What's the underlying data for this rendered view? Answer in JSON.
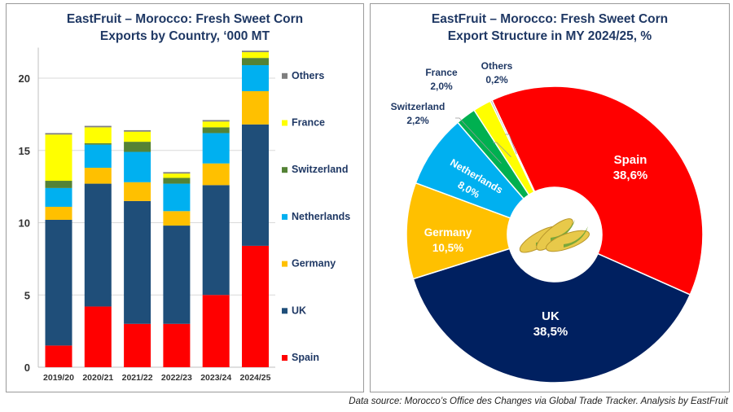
{
  "chart_data": [
    {
      "type": "bar",
      "stacked": true,
      "title": "EastFruit – Morocco: Fresh Sweet Corn Exports by Country, ‘000 MT",
      "categories": [
        "2019/20",
        "2020/21",
        "2021/22",
        "2022/23",
        "2023/24",
        "2024/25"
      ],
      "ylim": [
        0,
        22
      ],
      "yticks": [
        0,
        5,
        10,
        15,
        20
      ],
      "grid": true,
      "legend": "right",
      "series": [
        {
          "name": "Spain",
          "color": "#ff0000",
          "values": [
            1.5,
            4.2,
            3.0,
            3.0,
            5.0,
            8.4
          ]
        },
        {
          "name": "UK",
          "color": "#1f4e79",
          "values": [
            8.7,
            8.5,
            8.5,
            6.8,
            7.6,
            8.4
          ]
        },
        {
          "name": "Germany",
          "color": "#ffc000",
          "values": [
            0.9,
            1.1,
            1.3,
            1.0,
            1.5,
            2.3
          ]
        },
        {
          "name": "Netherlands",
          "color": "#00b0f0",
          "values": [
            1.3,
            1.6,
            2.1,
            1.9,
            2.1,
            1.8
          ]
        },
        {
          "name": "Switzerland",
          "color": "#548235",
          "values": [
            0.5,
            0.1,
            0.7,
            0.4,
            0.4,
            0.5
          ]
        },
        {
          "name": "France",
          "color": "#ffff00",
          "values": [
            3.2,
            1.1,
            0.7,
            0.3,
            0.4,
            0.4
          ]
        },
        {
          "name": "Others",
          "color": "#7f7f7f",
          "values": [
            0.1,
            0.1,
            0.1,
            0.1,
            0.1,
            0.1
          ]
        }
      ]
    },
    {
      "type": "pie",
      "donut": true,
      "title": "EastFruit – Morocco: Fresh Sweet Corn Export Structure in MY 2024/25, %",
      "slices": [
        {
          "name": "Spain",
          "value": 38.6,
          "label": "38,6%",
          "color": "#ff0000"
        },
        {
          "name": "UK",
          "value": 38.5,
          "label": "38,5%",
          "color": "#002060"
        },
        {
          "name": "Germany",
          "value": 10.5,
          "label": "10,5%",
          "color": "#ffc000"
        },
        {
          "name": "Netherlands",
          "value": 8.0,
          "label": "8,0%",
          "color": "#00b0f0"
        },
        {
          "name": "Switzerland",
          "value": 2.2,
          "label": "2,2%",
          "color": "#00b050"
        },
        {
          "name": "France",
          "value": 2.0,
          "label": "2,0%",
          "color": "#ffff00"
        },
        {
          "name": "Others",
          "value": 0.2,
          "label": "0,2%",
          "color": "#a6a6a6"
        }
      ]
    }
  ],
  "bar_title": [
    "EastFruit – Morocco: Fresh Sweet Corn",
    "Exports by Country, ‘000 MT"
  ],
  "pie_title": [
    "EastFruit – Morocco: Fresh Sweet Corn",
    "Export Structure in MY 2024/25, %"
  ],
  "footer": "Data source: Morocco’s Office des Changes via Global Trade Tracker. Analysis by EastFruit"
}
